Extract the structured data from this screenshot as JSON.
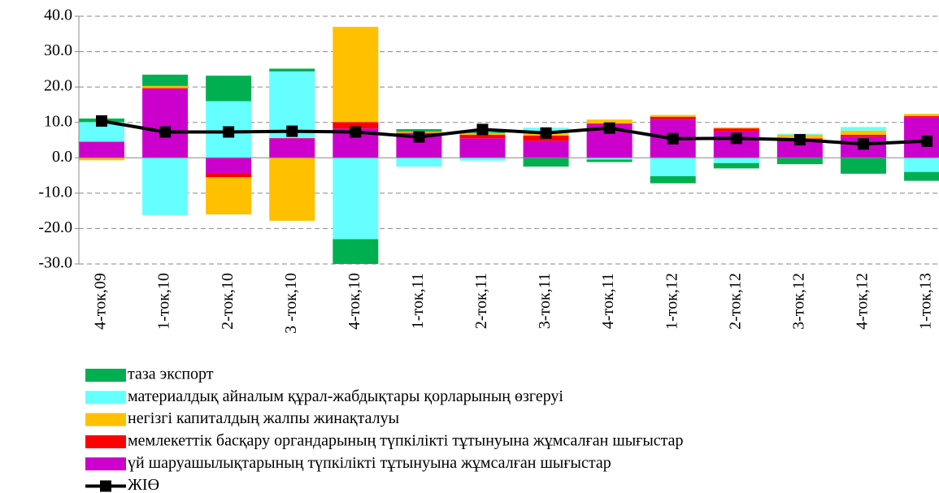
{
  "chart_data": {
    "type": "bar",
    "categories": [
      "4-ток,09",
      "1-ток,10",
      "2-ток,10",
      "3 -ток,10",
      "4-ток,10",
      "1-ток,11",
      "2-ток,11",
      "3-ток,11",
      "4-ток,11",
      "1-ток,12",
      "2-ток,12",
      "3-ток,12",
      "4-ток,12",
      "1-ток,13"
    ],
    "stacked": true,
    "series": [
      {
        "name": "таза экспорт",
        "color": "#00b050",
        "values": [
          1.0,
          3.2,
          7.2,
          0.8,
          -7.0,
          0.7,
          0.3,
          -2.5,
          -0.7,
          -2.0,
          -1.5,
          -1.8,
          -4.5,
          -2.5
        ]
      },
      {
        "name": "материалдық айналым құрал-жабдықтары қорларының өзгеруі",
        "color": "#66ffff",
        "values": [
          5.5,
          -16.2,
          16.0,
          18.8,
          -23.0,
          -2.5,
          -0.8,
          1.7,
          -0.5,
          -5.2,
          -1.5,
          0.3,
          1.0,
          -4.0
        ]
      },
      {
        "name": "негізгі капиталдың жалпы жинақталуы",
        "color": "#ffc000",
        "values": [
          -0.7,
          0.6,
          -10.5,
          -17.8,
          26.9,
          0.3,
          0.5,
          0.5,
          1.1,
          0.5,
          0.3,
          1.0,
          1.2,
          0.6
        ]
      },
      {
        "name": "мемлекеттік басқару органдарының түпкілікті тұтынуына жұмсалған шығыстар",
        "color": "#ff0000",
        "values": [
          0.1,
          0.2,
          -1.2,
          0.1,
          1.8,
          0.1,
          1.0,
          1.5,
          0.2,
          0.8,
          0.8,
          0.5,
          0.5,
          0.3
        ]
      },
      {
        "name": "үй шаруашылықтарының түпкілікті тұтынуына жұмсалған шығыстар",
        "color": "#cc00cc",
        "values": [
          4.5,
          19.5,
          -4.3,
          5.5,
          8.3,
          7.0,
          5.5,
          4.8,
          9.5,
          10.8,
          7.5,
          5.0,
          6.0,
          11.5
        ]
      },
      {
        "name": "ЖІӨ",
        "type": "line",
        "color": "#000000",
        "values": [
          10.4,
          7.3,
          7.3,
          7.5,
          7.3,
          5.9,
          8.0,
          7.0,
          8.4,
          5.4,
          5.5,
          5.1,
          3.9,
          4.7
        ]
      }
    ],
    "ylim": [
      -30,
      40
    ],
    "yticks": [
      {
        "value": -30,
        "label": "-30.0"
      },
      {
        "value": -20,
        "label": "-20.0"
      },
      {
        "value": -10,
        "label": "-10.0"
      },
      {
        "value": 0,
        "label": "0.0"
      },
      {
        "value": 10,
        "label": "10.0"
      },
      {
        "value": 20,
        "label": "20.0"
      },
      {
        "value": 30,
        "label": "30.0"
      },
      {
        "value": 40,
        "label": "40.0"
      }
    ],
    "grid": true,
    "legend": "bottom"
  }
}
